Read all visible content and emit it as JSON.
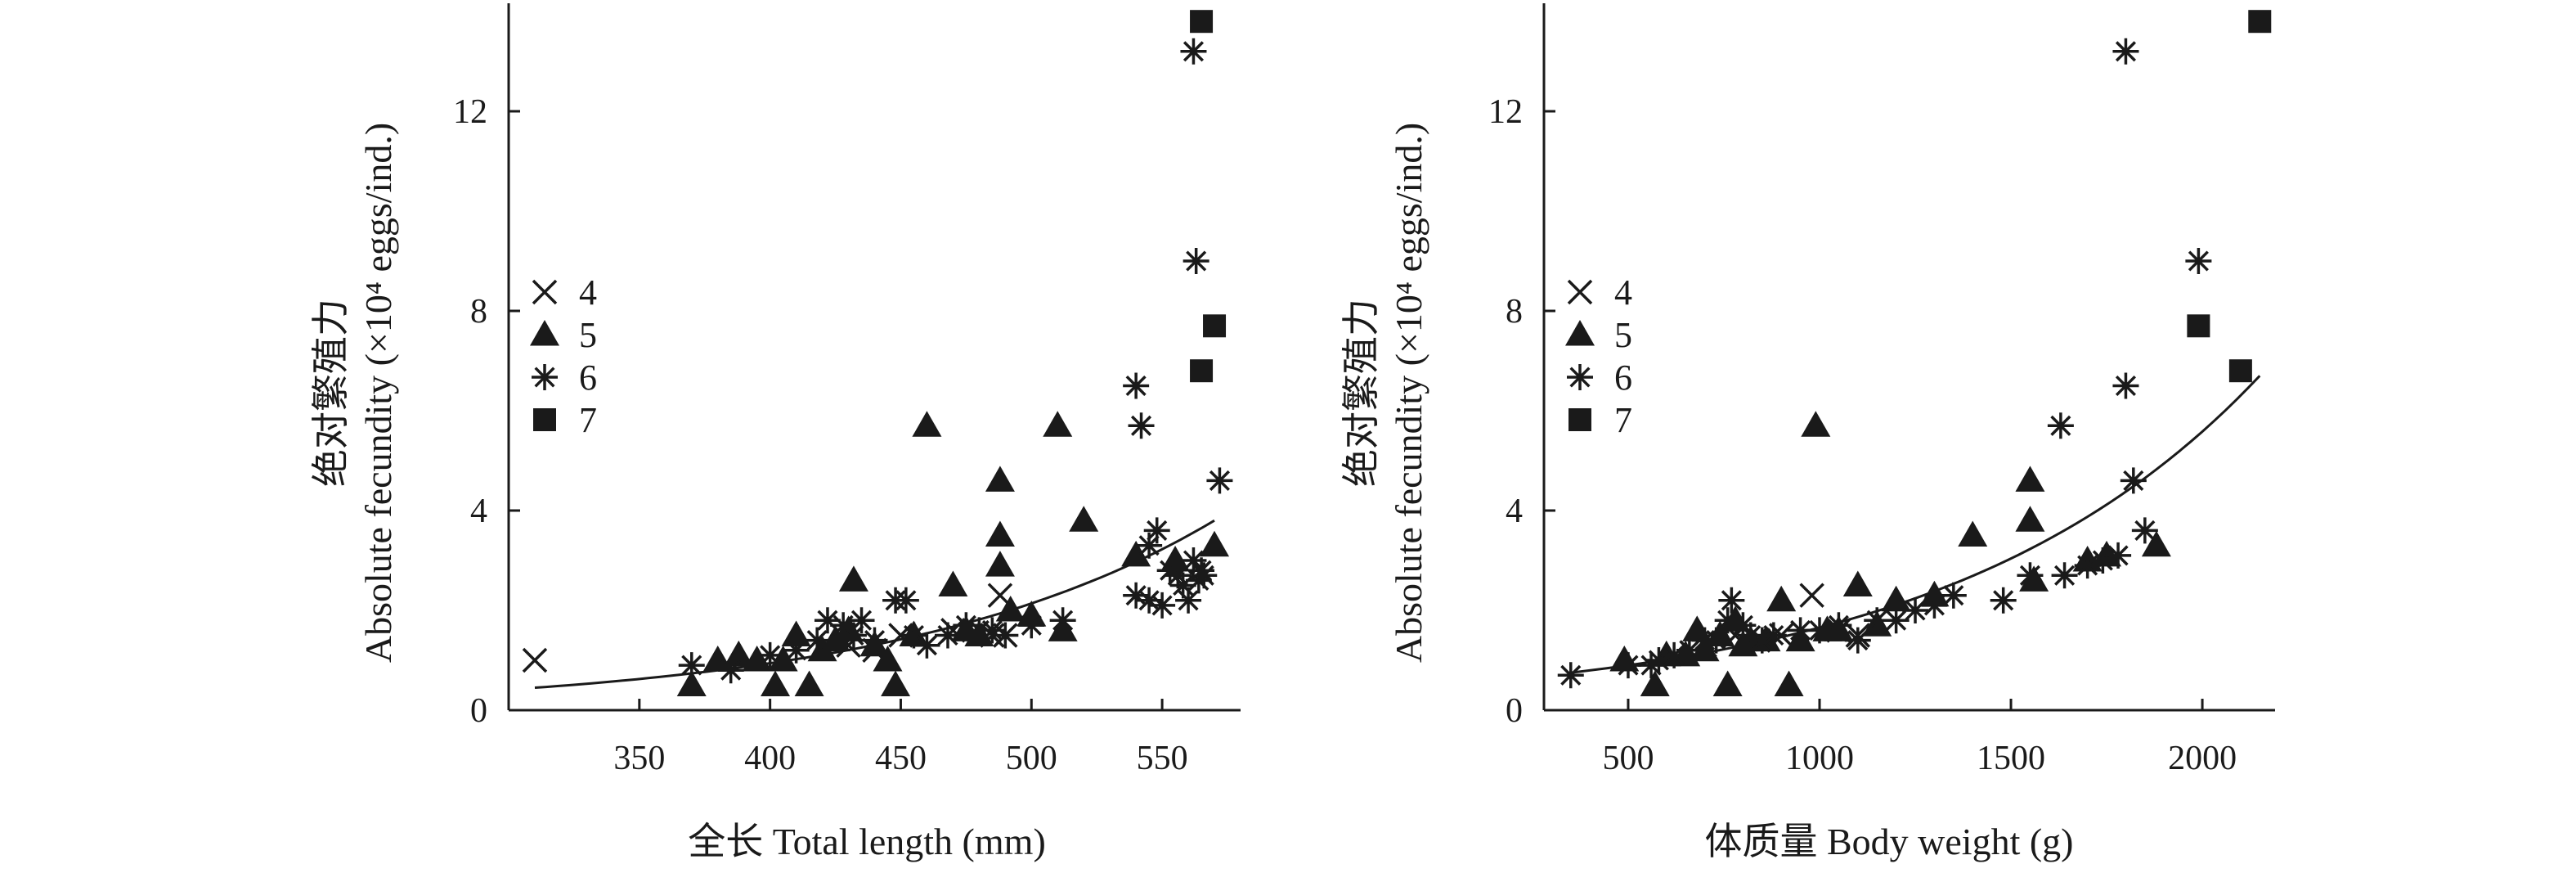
{
  "chart_data": [
    {
      "type": "scatter",
      "panel": "left",
      "xlabel": "全长 Total length (mm)",
      "ylabel_line1": "绝对繁殖力",
      "ylabel_line2": "Absolute fecundity (×10⁴ eggs/ind.)",
      "xlim": [
        300,
        580
      ],
      "ylim": [
        0,
        14
      ],
      "x_ticks": [
        350,
        400,
        450,
        500,
        550
      ],
      "y_ticks": [
        0,
        4,
        8,
        12
      ],
      "legend": [
        {
          "label": "4",
          "marker": "x"
        },
        {
          "label": "5",
          "marker": "triangle"
        },
        {
          "label": "6",
          "marker": "star"
        },
        {
          "label": "7",
          "marker": "square"
        }
      ],
      "series": [
        {
          "name": "4",
          "marker": "x",
          "points": [
            [
              310,
              1.0
            ],
            [
              450,
              1.5
            ],
            [
              470,
              1.6
            ],
            [
              488,
              2.3
            ],
            [
              485,
              1.5
            ],
            [
              490,
              1.5
            ],
            [
              430,
              1.3
            ],
            [
              440,
              1.2
            ]
          ]
        },
        {
          "name": "5",
          "marker": "triangle",
          "points": [
            [
              370,
              0.5
            ],
            [
              380,
              1.0
            ],
            [
              388,
              1.1
            ],
            [
              395,
              1.0
            ],
            [
              402,
              0.5
            ],
            [
              405,
              1.0
            ],
            [
              410,
              1.5
            ],
            [
              415,
              0.5
            ],
            [
              420,
              1.2
            ],
            [
              425,
              1.4
            ],
            [
              430,
              1.6
            ],
            [
              432,
              2.6
            ],
            [
              440,
              1.3
            ],
            [
              445,
              1.0
            ],
            [
              448,
              0.5
            ],
            [
              455,
              1.5
            ],
            [
              460,
              5.7
            ],
            [
              470,
              2.5
            ],
            [
              475,
              1.6
            ],
            [
              480,
              1.5
            ],
            [
              488,
              4.6
            ],
            [
              488,
              3.5
            ],
            [
              488,
              2.9
            ],
            [
              492,
              2.0
            ],
            [
              500,
              1.9
            ],
            [
              510,
              5.7
            ],
            [
              512,
              1.6
            ],
            [
              520,
              3.8
            ],
            [
              540,
              3.1
            ],
            [
              555,
              3.0
            ],
            [
              570,
              3.3
            ]
          ]
        },
        {
          "name": "6",
          "marker": "star",
          "points": [
            [
              370,
              0.9
            ],
            [
              385,
              0.8
            ],
            [
              400,
              1.1
            ],
            [
              410,
              1.2
            ],
            [
              418,
              1.4
            ],
            [
              422,
              1.8
            ],
            [
              428,
              1.7
            ],
            [
              432,
              1.5
            ],
            [
              435,
              1.8
            ],
            [
              440,
              1.4
            ],
            [
              448,
              2.2
            ],
            [
              452,
              2.2
            ],
            [
              455,
              1.5
            ],
            [
              460,
              1.3
            ],
            [
              468,
              1.5
            ],
            [
              475,
              1.7
            ],
            [
              480,
              1.6
            ],
            [
              485,
              1.6
            ],
            [
              490,
              1.5
            ],
            [
              500,
              1.7
            ],
            [
              512,
              1.8
            ],
            [
              540,
              6.5
            ],
            [
              542,
              5.7
            ],
            [
              540,
              2.3
            ],
            [
              545,
              2.2
            ],
            [
              545,
              3.3
            ],
            [
              548,
              3.6
            ],
            [
              550,
              2.1
            ],
            [
              553,
              2.8
            ],
            [
              556,
              2.7
            ],
            [
              558,
              2.5
            ],
            [
              560,
              2.2
            ],
            [
              562,
              3.0
            ],
            [
              564,
              2.6
            ],
            [
              565,
              2.8
            ],
            [
              566,
              2.7
            ],
            [
              562,
              13.2
            ],
            [
              563,
              9.0
            ],
            [
              572,
              4.6
            ]
          ]
        },
        {
          "name": "7",
          "marker": "square",
          "points": [
            [
              565,
              13.8
            ],
            [
              565,
              6.8
            ],
            [
              570,
              7.7
            ]
          ]
        }
      ],
      "fit": {
        "x_start": 310,
        "x_end": 570,
        "y_start": 0.45,
        "y_end": 3.8
      }
    },
    {
      "type": "scatter",
      "panel": "right",
      "xlabel": "体质量 Body weight (g)",
      "ylabel_line1": "绝对繁殖力",
      "ylabel_line2": "Absolute fecundity (×10⁴ eggs/ind.)",
      "xlim": [
        280,
        2190
      ],
      "ylim": [
        0,
        14
      ],
      "x_ticks": [
        500,
        1000,
        1500,
        2000
      ],
      "y_ticks": [
        0,
        4,
        8,
        12
      ],
      "legend": [
        {
          "label": "4",
          "marker": "x"
        },
        {
          "label": "5",
          "marker": "triangle"
        },
        {
          "label": "6",
          "marker": "star"
        },
        {
          "label": "7",
          "marker": "square"
        }
      ],
      "series": [
        {
          "name": "4",
          "marker": "x",
          "points": [
            [
              980,
              2.3
            ],
            [
              700,
              1.3
            ],
            [
              780,
              1.5
            ],
            [
              840,
              1.4
            ],
            [
              900,
              1.5
            ],
            [
              1050,
              1.6
            ],
            [
              1100,
              1.5
            ]
          ]
        },
        {
          "name": "5",
          "marker": "triangle",
          "points": [
            [
              490,
              1.0
            ],
            [
              570,
              0.5
            ],
            [
              600,
              1.1
            ],
            [
              650,
              1.1
            ],
            [
              680,
              1.6
            ],
            [
              700,
              1.2
            ],
            [
              740,
              1.5
            ],
            [
              760,
              0.5
            ],
            [
              780,
              1.8
            ],
            [
              800,
              1.3
            ],
            [
              820,
              1.4
            ],
            [
              860,
              1.4
            ],
            [
              900,
              2.2
            ],
            [
              920,
              0.5
            ],
            [
              950,
              1.4
            ],
            [
              990,
              5.7
            ],
            [
              1020,
              1.6
            ],
            [
              1050,
              1.6
            ],
            [
              1100,
              2.5
            ],
            [
              1150,
              1.7
            ],
            [
              1200,
              2.2
            ],
            [
              1300,
              2.3
            ],
            [
              1400,
              3.5
            ],
            [
              1550,
              4.6
            ],
            [
              1550,
              3.8
            ],
            [
              1560,
              2.6
            ],
            [
              1700,
              3.0
            ],
            [
              1750,
              3.1
            ],
            [
              1880,
              3.3
            ]
          ]
        },
        {
          "name": "6",
          "marker": "star",
          "points": [
            [
              350,
              0.7
            ],
            [
              500,
              0.9
            ],
            [
              560,
              0.9
            ],
            [
              580,
              1.0
            ],
            [
              620,
              1.1
            ],
            [
              660,
              1.2
            ],
            [
              700,
              1.4
            ],
            [
              730,
              1.4
            ],
            [
              760,
              1.8
            ],
            [
              770,
              2.2
            ],
            [
              800,
              1.7
            ],
            [
              820,
              1.5
            ],
            [
              850,
              1.4
            ],
            [
              880,
              1.5
            ],
            [
              950,
              1.6
            ],
            [
              1000,
              1.6
            ],
            [
              1050,
              1.7
            ],
            [
              1100,
              1.4
            ],
            [
              1150,
              1.8
            ],
            [
              1200,
              1.8
            ],
            [
              1250,
              2.0
            ],
            [
              1300,
              2.1
            ],
            [
              1350,
              2.3
            ],
            [
              1480,
              2.2
            ],
            [
              1550,
              2.7
            ],
            [
              1630,
              5.7
            ],
            [
              1640,
              2.7
            ],
            [
              1700,
              2.9
            ],
            [
              1740,
              3.0
            ],
            [
              1780,
              3.1
            ],
            [
              1800,
              6.5
            ],
            [
              1820,
              4.6
            ],
            [
              1800,
              13.2
            ],
            [
              1850,
              3.6
            ],
            [
              1990,
              9.0
            ]
          ]
        },
        {
          "name": "7",
          "marker": "square",
          "points": [
            [
              2150,
              13.8
            ],
            [
              1990,
              7.7
            ],
            [
              2100,
              6.8
            ]
          ]
        }
      ],
      "fit": {
        "x_start": 350,
        "x_end": 2150,
        "y_start": 0.75,
        "y_end": 6.7
      }
    }
  ]
}
